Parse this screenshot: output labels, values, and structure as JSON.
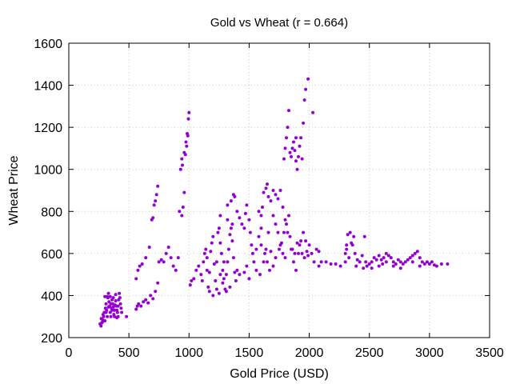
{
  "chart_data": {
    "type": "scatter",
    "title": "Gold vs Wheat (r = 0.664)",
    "xlabel": "Gold Price (USD)",
    "ylabel": "Wheat Price",
    "xlim": [
      0,
      3500
    ],
    "ylim": [
      200,
      1600
    ],
    "xticks": [
      "0",
      "500",
      "1000",
      "1500",
      "2000",
      "2500",
      "3000",
      "3500"
    ],
    "yticks": [
      "200",
      "400",
      "600",
      "800",
      "1000",
      "1200",
      "1400",
      "1600"
    ],
    "grid": true,
    "legend": "none",
    "marker_color": "#9400d3",
    "points": [
      [
        260,
        265
      ],
      [
        268,
        255
      ],
      [
        275,
        270
      ],
      [
        282,
        285
      ],
      [
        290,
        300
      ],
      [
        295,
        320
      ],
      [
        300,
        280
      ],
      [
        305,
        340
      ],
      [
        310,
        360
      ],
      [
        315,
        330
      ],
      [
        320,
        300
      ],
      [
        325,
        390
      ],
      [
        330,
        410
      ],
      [
        335,
        370
      ],
      [
        340,
        350
      ],
      [
        345,
        320
      ],
      [
        350,
        300
      ],
      [
        355,
        340
      ],
      [
        360,
        380
      ],
      [
        365,
        360
      ],
      [
        370,
        345
      ],
      [
        375,
        310
      ],
      [
        380,
        330
      ],
      [
        385,
        355
      ],
      [
        390,
        375
      ],
      [
        395,
        350
      ],
      [
        400,
        330
      ],
      [
        405,
        320
      ],
      [
        410,
        300
      ],
      [
        415,
        380
      ],
      [
        420,
        410
      ],
      [
        425,
        390
      ],
      [
        430,
        360
      ],
      [
        435,
        340
      ],
      [
        440,
        320
      ],
      [
        300,
        395
      ],
      [
        320,
        395
      ],
      [
        345,
        395
      ],
      [
        360,
        330
      ],
      [
        380,
        300
      ],
      [
        270,
        290
      ],
      [
        285,
        310
      ],
      [
        310,
        320
      ],
      [
        330,
        345
      ],
      [
        350,
        360
      ],
      [
        370,
        390
      ],
      [
        390,
        405
      ],
      [
        410,
        350
      ],
      [
        400,
        295
      ],
      [
        280,
        275
      ],
      [
        480,
        300
      ],
      [
        560,
        335
      ],
      [
        570,
        350
      ],
      [
        580,
        360
      ],
      [
        600,
        350
      ],
      [
        620,
        370
      ],
      [
        640,
        380
      ],
      [
        660,
        365
      ],
      [
        680,
        400
      ],
      [
        700,
        385
      ],
      [
        720,
        420
      ],
      [
        740,
        460
      ],
      [
        560,
        480
      ],
      [
        575,
        520
      ],
      [
        590,
        540
      ],
      [
        610,
        550
      ],
      [
        640,
        580
      ],
      [
        670,
        630
      ],
      [
        700,
        770
      ],
      [
        710,
        830
      ],
      [
        720,
        850
      ],
      [
        730,
        880
      ],
      [
        740,
        920
      ],
      [
        690,
        760
      ],
      [
        750,
        560
      ],
      [
        770,
        570
      ],
      [
        790,
        560
      ],
      [
        810,
        600
      ],
      [
        830,
        630
      ],
      [
        850,
        580
      ],
      [
        870,
        540
      ],
      [
        890,
        520
      ],
      [
        910,
        580
      ],
      [
        920,
        800
      ],
      [
        940,
        780
      ],
      [
        950,
        820
      ],
      [
        960,
        890
      ],
      [
        930,
        1000
      ],
      [
        940,
        1050
      ],
      [
        960,
        1080
      ],
      [
        975,
        1130
      ],
      [
        985,
        1170
      ],
      [
        995,
        1240
      ],
      [
        1000,
        1270
      ],
      [
        990,
        1160
      ],
      [
        970,
        1070
      ],
      [
        945,
        1020
      ],
      [
        980,
        1110
      ],
      [
        1010,
        450
      ],
      [
        1020,
        470
      ],
      [
        1040,
        480
      ],
      [
        1060,
        520
      ],
      [
        1080,
        540
      ],
      [
        1100,
        500
      ],
      [
        1110,
        470
      ],
      [
        1120,
        560
      ],
      [
        1130,
        600
      ],
      [
        1140,
        620
      ],
      [
        1150,
        520
      ],
      [
        1160,
        440
      ],
      [
        1170,
        420
      ],
      [
        1180,
        610
      ],
      [
        1190,
        650
      ],
      [
        1200,
        680
      ],
      [
        1210,
        550
      ],
      [
        1220,
        470
      ],
      [
        1230,
        430
      ],
      [
        1240,
        700
      ],
      [
        1250,
        720
      ],
      [
        1260,
        650
      ],
      [
        1270,
        600
      ],
      [
        1280,
        520
      ],
      [
        1290,
        480
      ],
      [
        1300,
        430
      ],
      [
        1310,
        500
      ],
      [
        1320,
        560
      ],
      [
        1330,
        620
      ],
      [
        1340,
        690
      ],
      [
        1350,
        720
      ],
      [
        1360,
        660
      ],
      [
        1370,
        580
      ],
      [
        1380,
        510
      ],
      [
        1390,
        470
      ],
      [
        1200,
        400
      ],
      [
        1250,
        410
      ],
      [
        1280,
        460
      ],
      [
        1310,
        420
      ],
      [
        1340,
        440
      ],
      [
        1230,
        560
      ],
      [
        1170,
        510
      ],
      [
        1260,
        500
      ],
      [
        1290,
        560
      ],
      [
        1150,
        580
      ],
      [
        1260,
        780
      ],
      [
        1320,
        760
      ],
      [
        1360,
        740
      ],
      [
        1380,
        870
      ],
      [
        1350,
        850
      ],
      [
        1320,
        830
      ],
      [
        1370,
        880
      ],
      [
        1400,
        800
      ],
      [
        1420,
        770
      ],
      [
        1440,
        740
      ],
      [
        1460,
        720
      ],
      [
        1470,
        790
      ],
      [
        1480,
        830
      ],
      [
        1500,
        760
      ],
      [
        1510,
        700
      ],
      [
        1520,
        640
      ],
      [
        1530,
        600
      ],
      [
        1400,
        520
      ],
      [
        1420,
        500
      ],
      [
        1460,
        510
      ],
      [
        1480,
        540
      ],
      [
        1500,
        480
      ],
      [
        1540,
        560
      ],
      [
        1560,
        620
      ],
      [
        1580,
        680
      ],
      [
        1600,
        720
      ],
      [
        1610,
        820
      ],
      [
        1620,
        890
      ],
      [
        1640,
        910
      ],
      [
        1650,
        930
      ],
      [
        1660,
        870
      ],
      [
        1680,
        850
      ],
      [
        1700,
        900
      ],
      [
        1720,
        880
      ],
      [
        1740,
        860
      ],
      [
        1760,
        900
      ],
      [
        1780,
        820
      ],
      [
        1800,
        760
      ],
      [
        1820,
        700
      ],
      [
        1840,
        680
      ],
      [
        1860,
        620
      ],
      [
        1880,
        600
      ],
      [
        1900,
        650
      ],
      [
        1920,
        640
      ],
      [
        1940,
        600
      ],
      [
        1960,
        580
      ],
      [
        1980,
        610
      ],
      [
        2000,
        640
      ],
      [
        2020,
        600
      ],
      [
        2040,
        560
      ],
      [
        2060,
        620
      ],
      [
        2080,
        610
      ],
      [
        1600,
        640
      ],
      [
        1630,
        600
      ],
      [
        1650,
        560
      ],
      [
        1670,
        520
      ],
      [
        1700,
        540
      ],
      [
        1720,
        580
      ],
      [
        1750,
        620
      ],
      [
        1770,
        650
      ],
      [
        1790,
        700
      ],
      [
        1810,
        740
      ],
      [
        1830,
        780
      ],
      [
        1850,
        620
      ],
      [
        1870,
        560
      ],
      [
        1890,
        520
      ],
      [
        1910,
        600
      ],
      [
        1930,
        660
      ],
      [
        1950,
        700
      ],
      [
        1970,
        660
      ],
      [
        1990,
        590
      ],
      [
        1560,
        520
      ],
      [
        1590,
        500
      ],
      [
        1620,
        560
      ],
      [
        1640,
        620
      ],
      [
        1580,
        800
      ],
      [
        1600,
        780
      ],
      [
        1700,
        780
      ],
      [
        1720,
        740
      ],
      [
        1740,
        700
      ],
      [
        1760,
        640
      ],
      [
        1780,
        600
      ],
      [
        1800,
        580
      ],
      [
        1680,
        610
      ],
      [
        1660,
        700
      ],
      [
        1790,
        1050
      ],
      [
        1800,
        1100
      ],
      [
        1810,
        1150
      ],
      [
        1820,
        1200
      ],
      [
        1830,
        1280
      ],
      [
        1840,
        1080
      ],
      [
        1850,
        1060
      ],
      [
        1860,
        1100
      ],
      [
        1870,
        1130
      ],
      [
        1880,
        1090
      ],
      [
        1890,
        1040
      ],
      [
        1900,
        1000
      ],
      [
        1910,
        1060
      ],
      [
        1920,
        1110
      ],
      [
        1930,
        1150
      ],
      [
        1950,
        1220
      ],
      [
        1960,
        1330
      ],
      [
        1970,
        1380
      ],
      [
        1990,
        1430
      ],
      [
        2030,
        1270
      ],
      [
        1940,
        1050
      ],
      [
        1890,
        1150
      ],
      [
        2080,
        540
      ],
      [
        2100,
        560
      ],
      [
        2140,
        560
      ],
      [
        2180,
        550
      ],
      [
        2220,
        550
      ],
      [
        2260,
        540
      ],
      [
        2300,
        560
      ],
      [
        2310,
        640
      ],
      [
        2320,
        690
      ],
      [
        2340,
        700
      ],
      [
        2350,
        650
      ],
      [
        2360,
        640
      ],
      [
        2370,
        680
      ],
      [
        2380,
        600
      ],
      [
        2400,
        570
      ],
      [
        2420,
        560
      ],
      [
        2440,
        590
      ],
      [
        2460,
        680
      ],
      [
        2470,
        560
      ],
      [
        2480,
        540
      ],
      [
        2500,
        550
      ],
      [
        2520,
        560
      ],
      [
        2540,
        580
      ],
      [
        2560,
        570
      ],
      [
        2580,
        590
      ],
      [
        2600,
        570
      ],
      [
        2610,
        550
      ],
      [
        2620,
        580
      ],
      [
        2640,
        600
      ],
      [
        2660,
        590
      ],
      [
        2680,
        580
      ],
      [
        2700,
        560
      ],
      [
        2720,
        550
      ],
      [
        2740,
        570
      ],
      [
        2760,
        560
      ],
      [
        2780,
        550
      ],
      [
        2800,
        560
      ],
      [
        2820,
        570
      ],
      [
        2840,
        580
      ],
      [
        2860,
        590
      ],
      [
        2880,
        600
      ],
      [
        2900,
        610
      ],
      [
        2920,
        580
      ],
      [
        2940,
        560
      ],
      [
        2960,
        550
      ],
      [
        2980,
        560
      ],
      [
        3000,
        550
      ],
      [
        3020,
        560
      ],
      [
        3040,
        545
      ],
      [
        3060,
        540
      ],
      [
        3100,
        550
      ],
      [
        3150,
        550
      ],
      [
        2300,
        600
      ],
      [
        2310,
        620
      ],
      [
        2330,
        580
      ],
      [
        2390,
        540
      ],
      [
        2450,
        530
      ],
      [
        2520,
        530
      ],
      [
        2580,
        540
      ],
      [
        2640,
        560
      ],
      [
        2700,
        540
      ],
      [
        2760,
        530
      ],
      [
        2860,
        560
      ],
      [
        2920,
        540
      ]
    ]
  }
}
